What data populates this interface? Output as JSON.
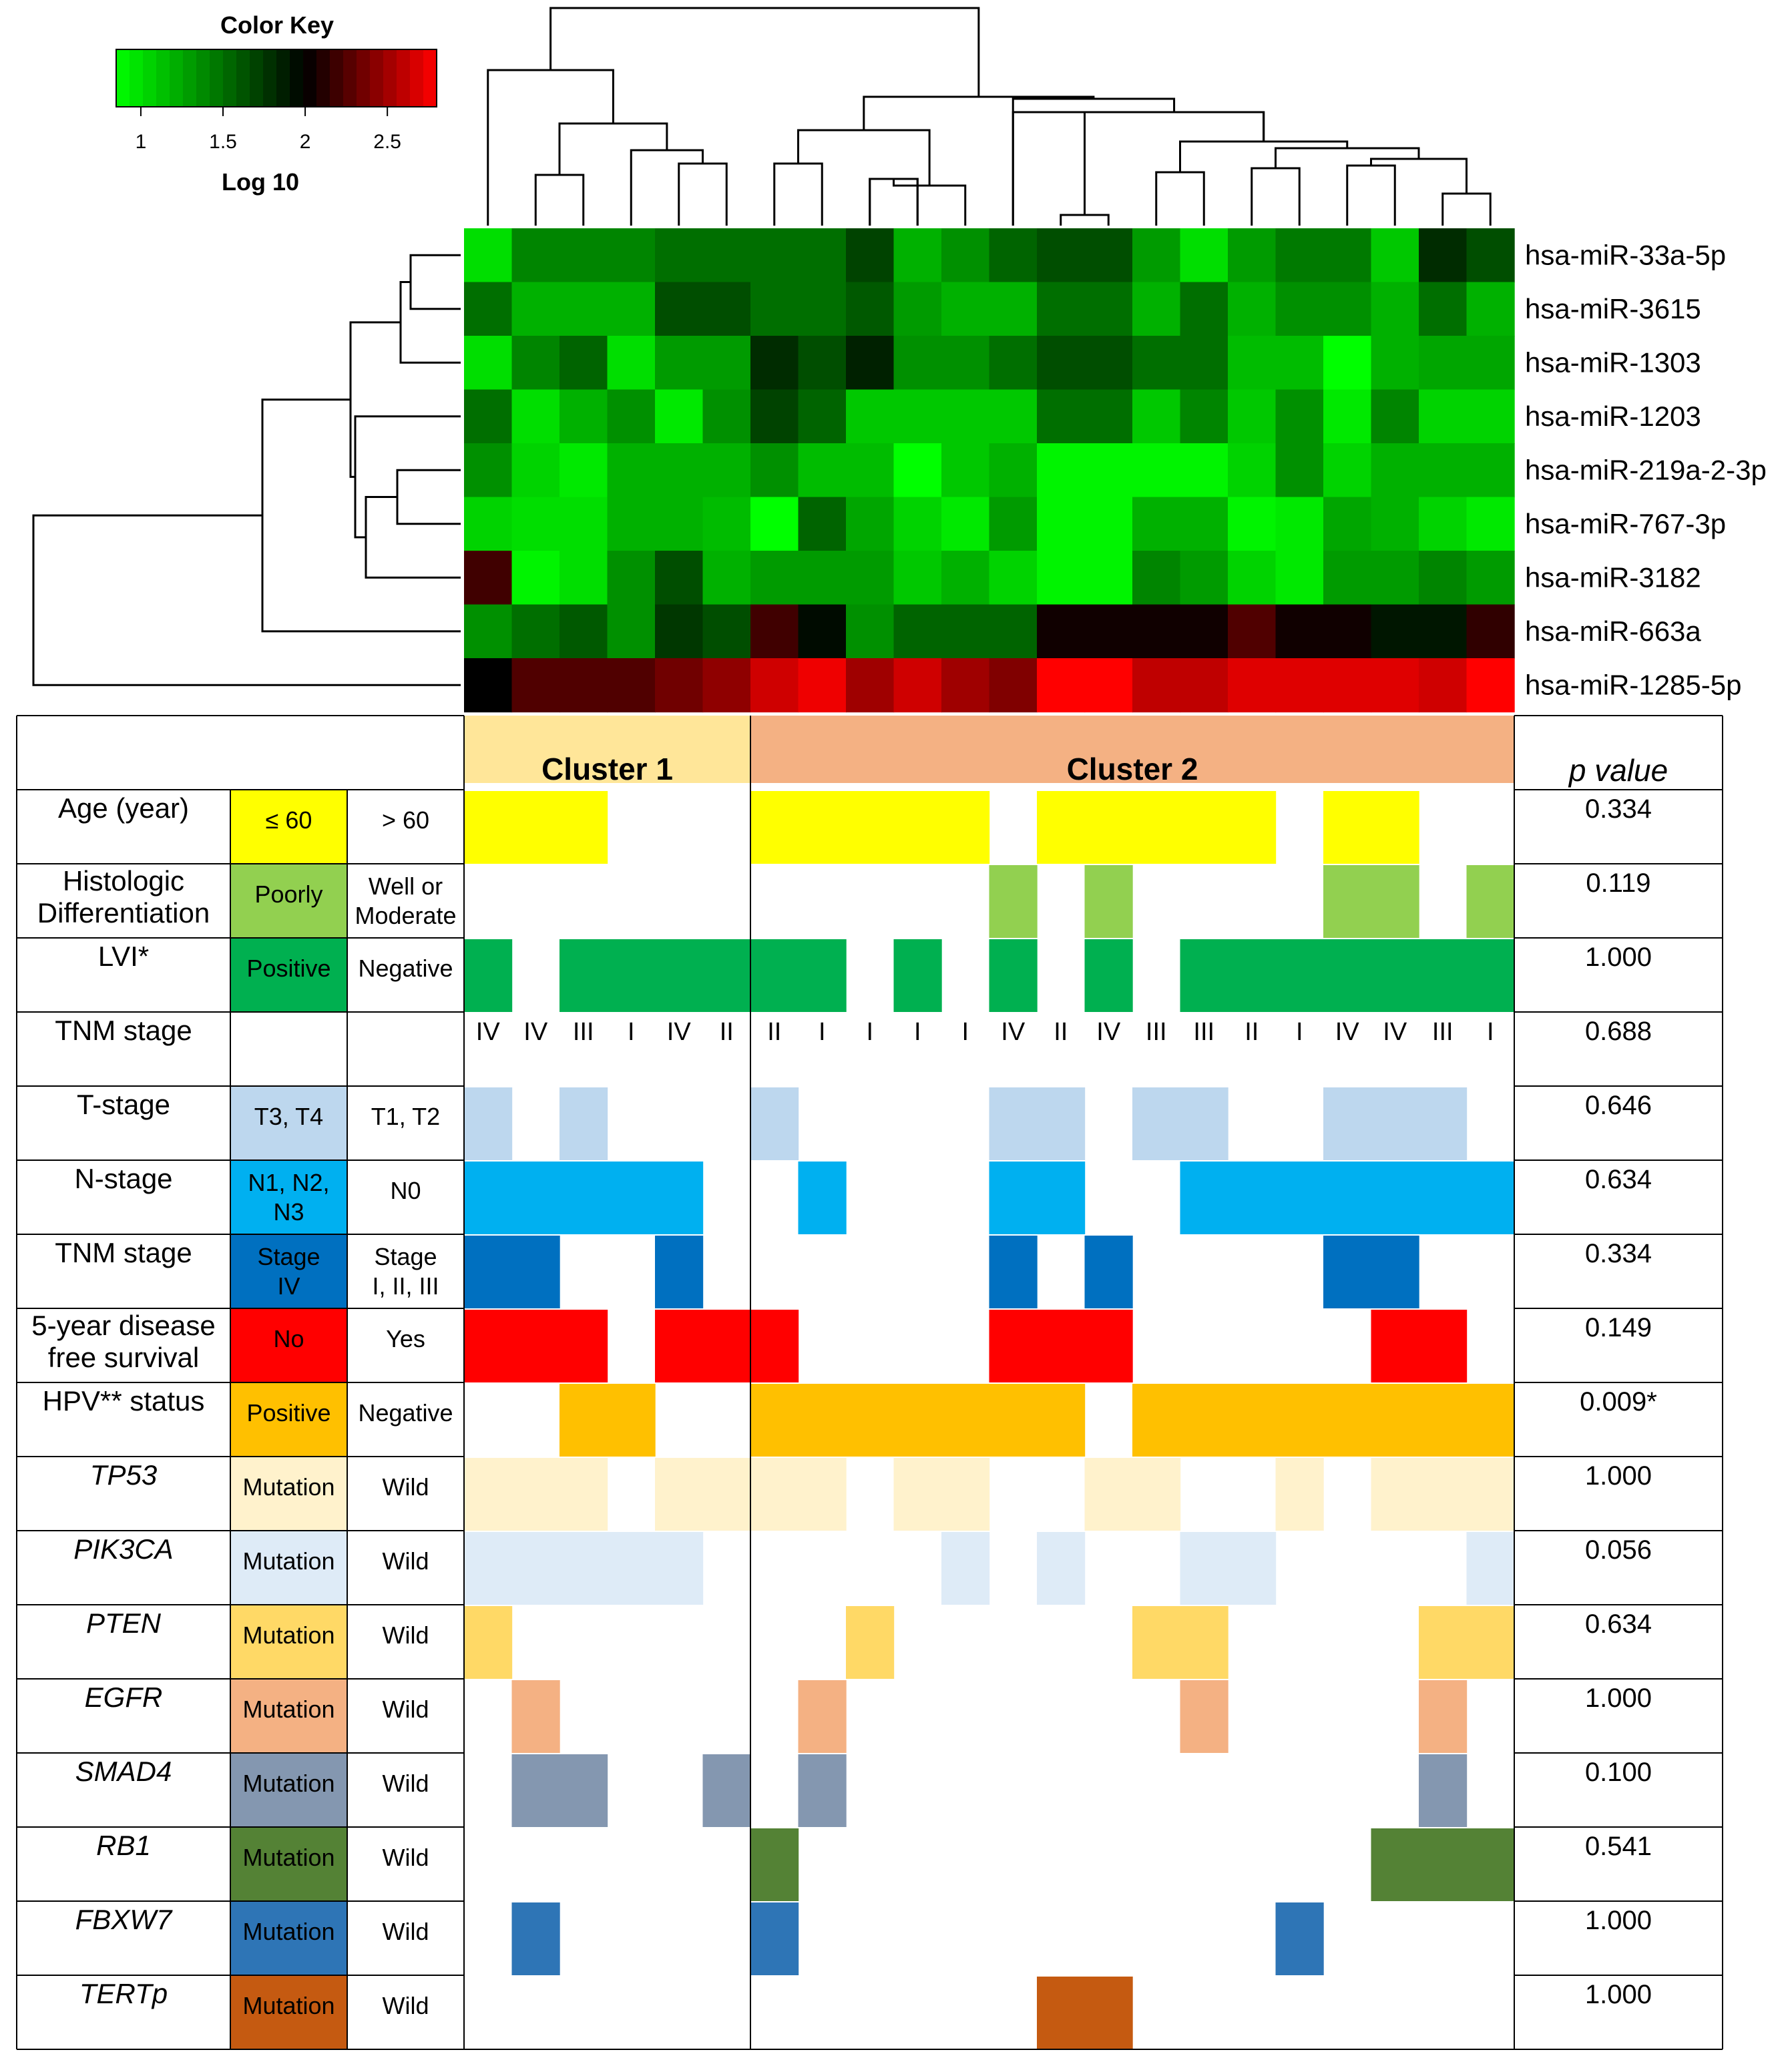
{
  "figure": {
    "color_key_title": "Color Key",
    "color_key_label": "Log 10",
    "color_key_ticks": [
      "1",
      "1.5",
      "2",
      "2.5"
    ],
    "color_key_tick_values": [
      1,
      1.5,
      2,
      2.5
    ],
    "color_key_range": [
      0.85,
      2.8
    ],
    "colors": {
      "low": "#00ff00",
      "mid": "#000000",
      "high": "#ff0000"
    }
  },
  "chart_data": {
    "type": "heatmap",
    "title": "",
    "value_label": "Log 10",
    "rows": [
      "hsa-miR-33a-5p",
      "hsa-miR-3615",
      "hsa-miR-1303",
      "hsa-miR-1203",
      "hsa-miR-219a-2-3p",
      "hsa-miR-767-3p",
      "hsa-miR-3182",
      "hsa-miR-663a",
      "hsa-miR-1285-5p"
    ],
    "n_samples": 22,
    "values": [
      [
        1.0,
        1.4,
        1.4,
        1.4,
        1.5,
        1.5,
        1.5,
        1.5,
        1.7,
        1.2,
        1.35,
        1.55,
        1.65,
        1.65,
        1.3,
        1.0,
        1.3,
        1.45,
        1.45,
        1.1,
        1.8,
        1.65
      ],
      [
        1.5,
        1.2,
        1.2,
        1.2,
        1.65,
        1.65,
        1.5,
        1.5,
        1.6,
        1.3,
        1.2,
        1.2,
        1.5,
        1.5,
        1.2,
        1.5,
        1.2,
        1.35,
        1.35,
        1.2,
        1.5,
        1.2
      ],
      [
        1.0,
        1.4,
        1.55,
        1.0,
        1.3,
        1.3,
        1.8,
        1.65,
        1.85,
        1.35,
        1.35,
        1.5,
        1.65,
        1.65,
        1.5,
        1.5,
        1.15,
        1.15,
        0.85,
        1.2,
        1.25,
        1.25
      ],
      [
        1.5,
        1.0,
        1.2,
        1.35,
        0.95,
        1.35,
        1.7,
        1.55,
        1.1,
        1.1,
        1.1,
        1.1,
        1.5,
        1.5,
        1.1,
        1.4,
        1.1,
        1.35,
        0.95,
        1.4,
        1.05,
        1.05
      ],
      [
        1.35,
        1.05,
        0.95,
        1.2,
        1.2,
        1.2,
        1.35,
        1.15,
        1.15,
        0.85,
        1.1,
        1.2,
        0.9,
        0.9,
        0.9,
        0.9,
        1.05,
        1.35,
        1.05,
        1.2,
        1.2,
        1.2
      ],
      [
        1.05,
        1.0,
        1.0,
        1.2,
        1.2,
        1.15,
        0.8,
        1.55,
        1.25,
        1.05,
        0.95,
        1.3,
        0.9,
        0.9,
        1.2,
        1.2,
        0.9,
        0.95,
        1.25,
        1.2,
        1.05,
        0.95
      ],
      [
        2.2,
        0.9,
        1.0,
        1.35,
        1.65,
        1.2,
        1.3,
        1.3,
        1.3,
        1.1,
        1.2,
        1.05,
        0.9,
        0.9,
        1.4,
        1.3,
        1.05,
        0.95,
        1.3,
        1.3,
        1.4,
        1.3
      ],
      [
        1.35,
        1.5,
        1.6,
        1.35,
        1.75,
        1.65,
        2.2,
        1.95,
        1.35,
        1.55,
        1.55,
        1.55,
        2.05,
        2.05,
        2.05,
        2.05,
        2.25,
        2.05,
        2.05,
        1.9,
        1.9,
        2.15
      ],
      [
        2.0,
        2.25,
        2.25,
        2.25,
        2.35,
        2.45,
        2.65,
        2.75,
        2.5,
        2.65,
        2.5,
        2.4,
        2.95,
        2.95,
        2.6,
        2.6,
        2.7,
        2.7,
        2.7,
        2.7,
        2.65,
        2.85
      ]
    ],
    "cluster_titles": [
      "Cluster 1",
      "Cluster 2"
    ],
    "cluster_sizes": [
      6,
      16
    ],
    "p_value_header": "p value",
    "clinical_rows": [
      {
        "name": "Age (year)",
        "italic": false,
        "pos_label": "≤ 60",
        "neg_label": "> 60",
        "color": "#ffff00",
        "cells": [
          1,
          1,
          1,
          0,
          0,
          0,
          1,
          1,
          1,
          1,
          1,
          0,
          1,
          1,
          1,
          1,
          1,
          0,
          1,
          1,
          0,
          0
        ],
        "p": "0.334"
      },
      {
        "name": "Histologic Differentiation",
        "italic": false,
        "pos_label": "Poorly",
        "neg_label": "Well or Moderate",
        "color": "#92d050",
        "cells": [
          0,
          0,
          0,
          0,
          0,
          0,
          0,
          0,
          0,
          0,
          0,
          1,
          0,
          1,
          0,
          0,
          0,
          0,
          1,
          1,
          0,
          1
        ],
        "p": "0.119"
      },
      {
        "name": "LVI*",
        "italic": false,
        "pos_label": "Positive",
        "neg_label": "Negative",
        "color": "#00b050",
        "cells": [
          1,
          0,
          1,
          1,
          1,
          1,
          1,
          1,
          0,
          1,
          0,
          1,
          0,
          1,
          0,
          1,
          1,
          1,
          1,
          1,
          1,
          1
        ],
        "p": "1.000"
      },
      {
        "name": "TNM stage",
        "italic": false,
        "pos_label": "",
        "neg_label": "",
        "color": "#ffffff",
        "stages": [
          "IV",
          "IV",
          "III",
          "I",
          "IV",
          "II",
          "II",
          "I",
          "I",
          "I",
          "I",
          "IV",
          "II",
          "IV",
          "III",
          "III",
          "II",
          "I",
          "IV",
          "IV",
          "III",
          "I"
        ],
        "p": "0.688"
      },
      {
        "name": "T-stage",
        "italic": false,
        "pos_label": "T3, T4",
        "neg_label": "T1, T2",
        "color": "#bdd7ee",
        "cells": [
          1,
          0,
          1,
          0,
          0,
          0,
          1,
          0,
          0,
          0,
          0,
          1,
          1,
          0,
          1,
          1,
          0,
          0,
          1,
          1,
          1,
          0
        ],
        "p": "0.646"
      },
      {
        "name": "N-stage",
        "italic": false,
        "pos_label": "N1, N2, N3",
        "neg_label": "N0",
        "color": "#00b0f0",
        "cells": [
          1,
          1,
          1,
          1,
          1,
          0,
          0,
          1,
          0,
          0,
          0,
          1,
          1,
          0,
          0,
          1,
          1,
          1,
          1,
          1,
          1,
          1
        ],
        "p": "0.634"
      },
      {
        "name": "TNM stage",
        "italic": false,
        "pos_label": "Stage IV",
        "neg_label": "Stage I, II, III",
        "color": "#0070c0",
        "cells": [
          1,
          1,
          0,
          0,
          1,
          0,
          0,
          0,
          0,
          0,
          0,
          1,
          0,
          1,
          0,
          0,
          0,
          0,
          1,
          1,
          0,
          0
        ],
        "p": "0.334"
      },
      {
        "name": "5-year disease free survival",
        "italic": false,
        "pos_label": "No",
        "neg_label": "Yes",
        "color": "#ff0000",
        "cells": [
          1,
          1,
          1,
          0,
          1,
          1,
          1,
          0,
          0,
          0,
          0,
          1,
          1,
          1,
          0,
          0,
          0,
          0,
          0,
          1,
          1,
          0
        ],
        "p": "0.149"
      },
      {
        "name": "HPV** status",
        "italic": false,
        "pos_label": "Positive",
        "neg_label": "Negative",
        "color": "#ffc000",
        "cells": [
          0,
          0,
          1,
          1,
          0,
          0,
          1,
          1,
          1,
          1,
          1,
          1,
          1,
          0,
          1,
          1,
          1,
          1,
          1,
          1,
          1,
          1
        ],
        "p": "0.009*"
      },
      {
        "name": "TP53",
        "italic": true,
        "pos_label": "Mutation",
        "neg_label": "Wild",
        "color": "#fff2cc",
        "cells": [
          1,
          1,
          1,
          0,
          1,
          1,
          1,
          1,
          0,
          1,
          1,
          0,
          0,
          1,
          1,
          0,
          0,
          1,
          0,
          1,
          1,
          1
        ],
        "p": "1.000"
      },
      {
        "name": "PIK3CA",
        "italic": true,
        "pos_label": "Mutation",
        "neg_label": "Wild",
        "color": "#deebf7",
        "cells": [
          1,
          1,
          1,
          1,
          1,
          0,
          0,
          0,
          0,
          0,
          1,
          0,
          1,
          0,
          0,
          1,
          1,
          0,
          0,
          0,
          0,
          1
        ],
        "p": "0.056"
      },
      {
        "name": "PTEN",
        "italic": true,
        "pos_label": "Mutation",
        "neg_label": "Wild",
        "color": "#ffd966",
        "cells": [
          1,
          0,
          0,
          0,
          0,
          0,
          0,
          0,
          1,
          0,
          0,
          0,
          0,
          0,
          1,
          1,
          0,
          0,
          0,
          0,
          1,
          1
        ],
        "p": "0.634"
      },
      {
        "name": "EGFR",
        "italic": true,
        "pos_label": "Mutation",
        "neg_label": "Wild",
        "color": "#f4b183",
        "cells": [
          0,
          1,
          0,
          0,
          0,
          0,
          0,
          1,
          0,
          0,
          0,
          0,
          0,
          0,
          0,
          1,
          0,
          0,
          0,
          0,
          1,
          0
        ],
        "p": "1.000"
      },
      {
        "name": "SMAD4",
        "italic": true,
        "pos_label": "Mutation",
        "neg_label": "Wild",
        "color": "#8497b0",
        "cells": [
          0,
          1,
          1,
          0,
          0,
          1,
          0,
          1,
          0,
          0,
          0,
          0,
          0,
          0,
          0,
          0,
          0,
          0,
          0,
          0,
          1,
          0
        ],
        "p": "0.100"
      },
      {
        "name": "RB1",
        "italic": true,
        "pos_label": "Mutation",
        "neg_label": "Wild",
        "color": "#548235",
        "cells": [
          0,
          0,
          0,
          0,
          0,
          0,
          1,
          0,
          0,
          0,
          0,
          0,
          0,
          0,
          0,
          0,
          0,
          0,
          0,
          1,
          1,
          1
        ],
        "p": "0.541"
      },
      {
        "name": "FBXW7",
        "italic": true,
        "pos_label": "Mutation",
        "neg_label": "Wild",
        "color": "#2e75b6",
        "cells": [
          0,
          1,
          0,
          0,
          0,
          0,
          1,
          0,
          0,
          0,
          0,
          0,
          0,
          0,
          0,
          0,
          0,
          1,
          0,
          0,
          0,
          0
        ],
        "p": "1.000"
      },
      {
        "name": "TERTp",
        "italic": true,
        "pos_label": "Mutation",
        "neg_label": "Wild",
        "color": "#c55a11",
        "cells": [
          0,
          0,
          0,
          0,
          0,
          0,
          0,
          0,
          0,
          0,
          0,
          0,
          1,
          1,
          0,
          0,
          0,
          0,
          0,
          0,
          0,
          0
        ],
        "p": "1.000"
      }
    ]
  }
}
